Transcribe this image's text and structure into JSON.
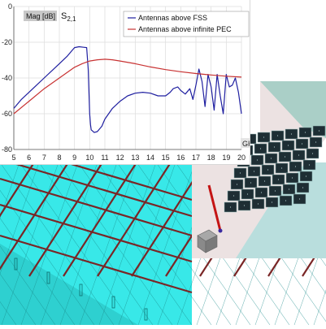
{
  "chart_data": {
    "type": "line",
    "title": "",
    "ylabel": "Mag [dB]",
    "param": "S2,1",
    "param_base": "S",
    "param_sub": "2,1",
    "xlabel": "GHz",
    "xlim": [
      5,
      20
    ],
    "ylim": [
      -80,
      0
    ],
    "xticks": [
      5,
      6,
      7,
      8,
      9,
      10,
      11,
      12,
      13,
      14,
      15,
      16,
      17,
      18,
      19,
      20
    ],
    "yticks": [
      0,
      -20,
      -40,
      -60,
      -80
    ],
    "grid": true,
    "legend_position": "top-right",
    "series": [
      {
        "name": "Antennas above FSS",
        "color": "#1f1fa0",
        "x": [
          5,
          5.5,
          6,
          6.5,
          7,
          7.5,
          8,
          8.5,
          8.8,
          9.0,
          9.3,
          9.6,
          9.8,
          9.9,
          10.0,
          10.05,
          10.1,
          10.3,
          10.5,
          10.8,
          11.0,
          11.5,
          12,
          12.5,
          13,
          13.5,
          14,
          14.5,
          15,
          15.3,
          15.5,
          15.8,
          16.0,
          16.3,
          16.6,
          16.8,
          17.0,
          17.2,
          17.4,
          17.6,
          17.8,
          18.0,
          18.2,
          18.4,
          18.6,
          18.8,
          19.0,
          19.2,
          19.4,
          19.6,
          19.8,
          20.0
        ],
        "y": [
          -57,
          -52,
          -48,
          -44,
          -40,
          -36,
          -32,
          -28,
          -25,
          -23,
          -22.5,
          -22.8,
          -23,
          -35,
          -60,
          -66,
          -69,
          -70.5,
          -70,
          -67,
          -63,
          -57,
          -53,
          -50,
          -48.5,
          -48,
          -48.5,
          -50,
          -50,
          -48,
          -46,
          -45,
          -47,
          -49,
          -46,
          -52,
          -44,
          -35,
          -42,
          -56,
          -38,
          -45,
          -58,
          -38,
          -50,
          -60,
          -38,
          -45,
          -44,
          -40,
          -48,
          -60
        ]
      },
      {
        "name": "Antennas above infinite PEC",
        "color": "#c83232",
        "x": [
          5,
          6,
          7,
          8,
          9,
          9.5,
          10,
          10.5,
          11,
          11.5,
          12,
          13,
          14,
          15,
          16,
          17,
          18,
          19,
          20
        ],
        "y": [
          -60,
          -53,
          -46,
          -40,
          -34,
          -32,
          -30.5,
          -29.8,
          -29.5,
          -29.8,
          -30.5,
          -32,
          -33.8,
          -35.3,
          -36.5,
          -37.5,
          -38.3,
          -39,
          -39.5
        ]
      }
    ]
  },
  "scene": {
    "fss_panel_color": "#38e8e8",
    "fss_grid_color": "#7a2626",
    "fss_mesh_color": "#1a8a8a",
    "plane_color": "#ece2e2",
    "right_plane_color": "#aacfc7",
    "ground_color": "#b9dedd",
    "cell_color": "#1e2e34",
    "probe_color": "#c41414"
  }
}
